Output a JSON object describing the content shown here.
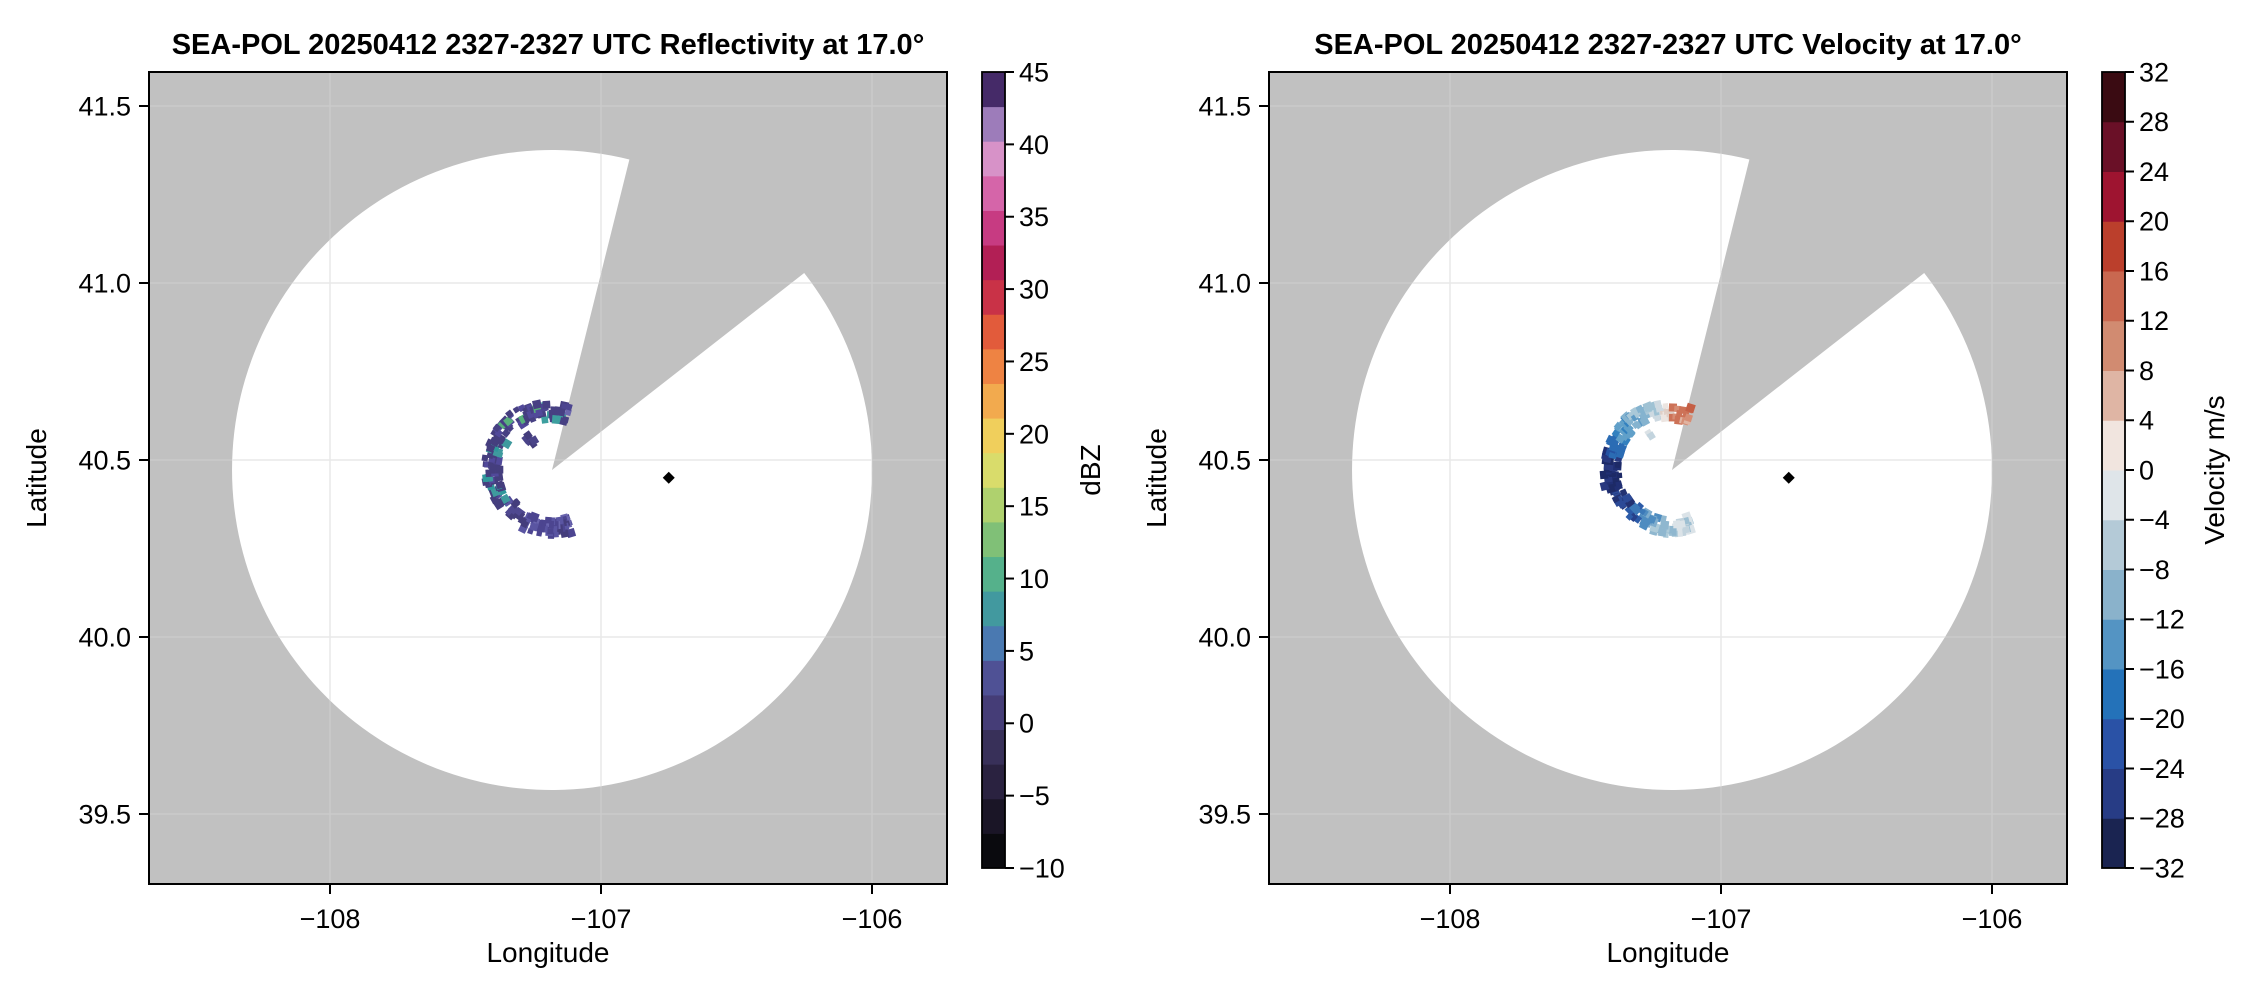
{
  "colors": {
    "background_gray": "#c1c1c1",
    "scan_area_white": "#ffffff",
    "grid_on_white": "#e9e9e9",
    "grid_on_gray": "#cbcbcb",
    "frame": "#000000",
    "marker": "#000000"
  },
  "chart_data": [
    {
      "type": "radar_ppi",
      "panel": "reflectivity",
      "title": "SEA-POL 20250412 2327-2327 UTC Reflectivity at 17.0°",
      "xlabel": "Longitude",
      "ylabel": "Latitude",
      "xlim": [
        -108.67,
        -105.72
      ],
      "ylim": [
        39.31,
        41.6
      ],
      "grid": true,
      "x_ticks": [
        -108,
        -107,
        -106
      ],
      "x_tick_labels": [
        "−108",
        "−107",
        "−106"
      ],
      "y_ticks": [
        41.5,
        41.0,
        40.5,
        40.0,
        39.5
      ],
      "y_tick_labels": [
        "41.5",
        "41.0",
        "40.5",
        "40.0",
        "39.5"
      ],
      "radar_center": {
        "lon": -107.18,
        "lat": 40.47
      },
      "scan_range_km": 100,
      "missing_sector_azimuth_deg": [
        14,
        52
      ],
      "site_marker": {
        "lon": -106.75,
        "lat": 40.45
      },
      "colorbar": {
        "label": "dBZ",
        "min": -10,
        "max": 45,
        "tick_values": [
          45,
          40,
          35,
          30,
          25,
          20,
          15,
          10,
          5,
          0,
          -5,
          -10
        ],
        "tick_labels": [
          "45",
          "40",
          "35",
          "30",
          "25",
          "20",
          "15",
          "10",
          "5",
          "0",
          "−5",
          "−10"
        ],
        "band_colors_bottom_to_top": [
          "#0a0a0e",
          "#1a1526",
          "#2a2240",
          "#383059",
          "#453d77",
          "#4f5195",
          "#4a79b1",
          "#42999f",
          "#55b18b",
          "#80c077",
          "#afd16e",
          "#d9dc6b",
          "#f0cf5c",
          "#f2aa4e",
          "#ee8343",
          "#e25b3b",
          "#c93247",
          "#b21f55",
          "#c73b82",
          "#d565a9",
          "#d792c8",
          "#9d7cba",
          "#452a68"
        ]
      },
      "echo_segments": [
        {
          "az": [
            161,
            209
          ],
          "radius_km": 18,
          "dbz": [
            0,
            5
          ],
          "density": 1,
          "colors": [
            "#4c4590",
            "#5a55a2",
            "#443d7c",
            "#6a65ae"
          ]
        },
        {
          "az": [
            209,
            233
          ],
          "radius_km": 17,
          "dbz": [
            -2,
            2
          ],
          "density": 0.5,
          "colors": [
            "#443d7c",
            "#4f4890"
          ]
        },
        {
          "az": [
            233,
            302
          ],
          "radius_km": 19,
          "dbz": [
            0,
            10
          ],
          "density": 1,
          "colors": [
            "#453e7e",
            "#51499a",
            "#3f9a9e",
            "#5c58a4",
            "#2f989b"
          ]
        },
        {
          "az": [
            302,
            352
          ],
          "radius_km": 19.5,
          "dbz": [
            0,
            12
          ],
          "density": 0.95,
          "colors": [
            "#474083",
            "#453e7e",
            "#2f989b",
            "#57b07c",
            "#51499a"
          ]
        },
        {
          "az": [
            322,
            330
          ],
          "radius_km": 12.5,
          "dbz": [
            0,
            3
          ],
          "density": 0.5,
          "colors": [
            "#4a4488",
            "#443d7c"
          ]
        },
        {
          "az": [
            352,
            378
          ],
          "radius_km": 18,
          "dbz": [
            0,
            5
          ],
          "density": 1,
          "colors": [
            "#474083",
            "#6b66ad",
            "#3d9f9f",
            "#4c4590"
          ]
        }
      ]
    },
    {
      "type": "radar_ppi",
      "panel": "velocity",
      "title": "SEA-POL 20250412 2327-2327 UTC Velocity at 17.0°",
      "xlabel": "Longitude",
      "ylabel": "Latitude",
      "xlim": [
        -108.67,
        -105.72
      ],
      "ylim": [
        39.31,
        41.6
      ],
      "grid": true,
      "x_ticks": [
        -108,
        -107,
        -106
      ],
      "x_tick_labels": [
        "−108",
        "−107",
        "−106"
      ],
      "y_ticks": [
        41.5,
        41.0,
        40.5,
        40.0,
        39.5
      ],
      "y_tick_labels": [
        "41.5",
        "41.0",
        "40.5",
        "40.0",
        "39.5"
      ],
      "radar_center": {
        "lon": -107.18,
        "lat": 40.47
      },
      "scan_range_km": 100,
      "missing_sector_azimuth_deg": [
        14,
        52
      ],
      "site_marker": {
        "lon": -106.75,
        "lat": 40.45
      },
      "colorbar": {
        "label": "Velocity m/s",
        "min": -32,
        "max": 32,
        "tick_values": [
          32,
          28,
          24,
          20,
          16,
          12,
          8,
          4,
          0,
          -4,
          -8,
          -12,
          -16,
          -20,
          -24,
          -28,
          -32
        ],
        "tick_labels": [
          "32",
          "28",
          "24",
          "20",
          "16",
          "12",
          "8",
          "4",
          "0",
          "−4",
          "−8",
          "−12",
          "−16",
          "−20",
          "−24",
          "−28",
          "−32"
        ],
        "band_colors_bottom_to_top": [
          "#1a2451",
          "#273c85",
          "#2a52a6",
          "#2472b9",
          "#5494c3",
          "#8ab2cb",
          "#b4cad7",
          "#dfe5e9",
          "#f1e5df",
          "#dfb5a4",
          "#d18b71",
          "#c96850",
          "#bb3f2c",
          "#9e1430",
          "#6a1027",
          "#3a0b12"
        ]
      },
      "echo_segments": [
        {
          "az": [
            161,
            178
          ],
          "radius_km": 17.5,
          "velocity_ms": [
            -6,
            -2
          ],
          "density": 1,
          "colors": [
            "#dbe3e8",
            "#c2d3dd",
            "#9dbfd2"
          ]
        },
        {
          "az": [
            178,
            196
          ],
          "radius_km": 18,
          "velocity_ms": [
            -10,
            -6
          ],
          "density": 1,
          "colors": [
            "#8fb7cf",
            "#aecbd9"
          ]
        },
        {
          "az": [
            196,
            214
          ],
          "radius_km": 18,
          "velocity_ms": [
            -16,
            -10
          ],
          "density": 1,
          "colors": [
            "#4e8cc0",
            "#7fadcd"
          ]
        },
        {
          "az": [
            214,
            233
          ],
          "radius_km": 17.5,
          "velocity_ms": [
            -24,
            -16
          ],
          "density": 0.55,
          "colors": [
            "#2c5ba8",
            "#3c79b8",
            "#27418b"
          ]
        },
        {
          "az": [
            233,
            252
          ],
          "radius_km": 18.5,
          "velocity_ms": [
            -28,
            -22
          ],
          "density": 1,
          "colors": [
            "#233272",
            "#2c4a97"
          ]
        },
        {
          "az": [
            252,
            285
          ],
          "radius_km": 19,
          "velocity_ms": [
            -32,
            -26
          ],
          "density": 1,
          "colors": [
            "#1d2a66",
            "#202f73",
            "#28387f"
          ]
        },
        {
          "az": [
            285,
            302
          ],
          "radius_km": 19.5,
          "velocity_ms": [
            -22,
            -16
          ],
          "density": 1,
          "colors": [
            "#2b6cb4",
            "#2553a3"
          ]
        },
        {
          "az": [
            302,
            318
          ],
          "radius_km": 19.5,
          "velocity_ms": [
            -16,
            -10
          ],
          "density": 1,
          "colors": [
            "#3381bf",
            "#61a0c9"
          ]
        },
        {
          "az": [
            318,
            338
          ],
          "radius_km": 19.5,
          "velocity_ms": [
            -10,
            -4
          ],
          "density": 1,
          "colors": [
            "#85b3cf",
            "#aac8d8",
            "#5d9ac5"
          ]
        },
        {
          "az": [
            322,
            330
          ],
          "radius_km": 12.5,
          "velocity_ms": [
            -4,
            0
          ],
          "density": 0.5,
          "colors": [
            "#c3d4de",
            "#dbe2e6"
          ]
        },
        {
          "az": [
            338,
            352
          ],
          "radius_km": 19,
          "velocity_ms": [
            -4,
            0
          ],
          "density": 1,
          "colors": [
            "#cdd9e1",
            "#e3e7e9",
            "#9fc2d4"
          ]
        },
        {
          "az": [
            352,
            360
          ],
          "radius_km": 18,
          "velocity_ms": [
            0,
            4
          ],
          "density": 1,
          "colors": [
            "#ece5e1",
            "#e0cfc6"
          ]
        },
        {
          "az": [
            360,
            378
          ],
          "radius_km": 18,
          "velocity_ms": [
            8,
            16
          ],
          "density": 1,
          "colors": [
            "#cd7257",
            "#d68d74",
            "#c55f45",
            "#e0b4a2"
          ]
        }
      ]
    }
  ]
}
